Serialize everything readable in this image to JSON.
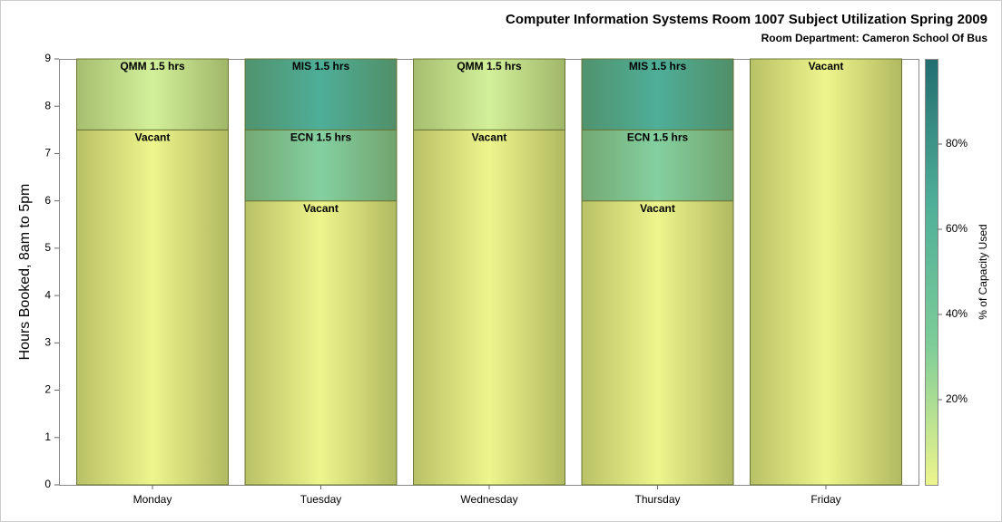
{
  "chart_data": {
    "type": "bar",
    "stacked": true,
    "title": "Computer Information Systems Room 1007 Subject Utilization Spring 2009",
    "subtitle": "Room Department:  Cameron School Of Bus",
    "y_label": "Hours Booked, 8am to 5pm",
    "categories": [
      "Monday",
      "Tuesday",
      "Wednesday",
      "Thursday",
      "Friday"
    ],
    "series": [
      {
        "color": "#eef58c",
        "values": [
          7.5,
          6,
          7.5,
          6,
          9
        ],
        "value_labels": [
          "Vacant",
          "Vacant",
          "Vacant",
          "Vacant",
          "Vacant"
        ]
      },
      {
        "color": "#84d0a0",
        "values": [
          null,
          1.5,
          null,
          1.5,
          null
        ],
        "value_labels": [
          null,
          "ECN 1.5 hrs",
          null,
          "ECN 1.5 hrs",
          null
        ]
      },
      {
        "color": "#d2f09a",
        "values": [
          1.5,
          null,
          1.5,
          null,
          null
        ],
        "value_labels": [
          "QMM 1.5 hrs",
          null,
          "QMM 1.5 hrs",
          null,
          null
        ]
      },
      {
        "color": "#4eae98",
        "values": [
          null,
          1.5,
          null,
          1.5,
          null
        ],
        "value_labels": [
          null,
          "MIS 1.5 hrs",
          null,
          "MIS 1.5 hrs",
          null
        ]
      }
    ],
    "ylim": [
      0,
      9
    ],
    "yticks": [
      0,
      1,
      2,
      3,
      4,
      5,
      6,
      7,
      8,
      9
    ],
    "colorbar": {
      "label": "% of Capacity Used",
      "lim": [
        0,
        100
      ],
      "ticks": [
        {
          "value": 20,
          "label": "20%"
        },
        {
          "value": 40,
          "label": "40%"
        },
        {
          "value": 60,
          "label": "60%"
        },
        {
          "value": 80,
          "label": "80%"
        }
      ],
      "colors": [
        "#eef58c",
        "#7ccc98",
        "#4eae98",
        "#226e70"
      ]
    }
  }
}
